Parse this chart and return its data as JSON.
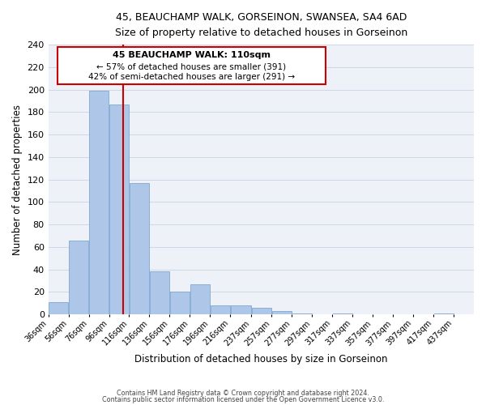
{
  "title_line1": "45, BEAUCHAMP WALK, GORSEINON, SWANSEA, SA4 6AD",
  "title_line2": "Size of property relative to detached houses in Gorseinon",
  "xlabel": "Distribution of detached houses by size in Gorseinon",
  "ylabel": "Number of detached properties",
  "bar_left_edges": [
    36,
    56,
    76,
    96,
    116,
    136,
    156,
    176,
    196,
    216,
    237,
    257,
    277,
    297,
    317,
    337,
    357,
    377,
    397,
    417
  ],
  "bar_widths": [
    20,
    20,
    20,
    20,
    20,
    20,
    20,
    20,
    20,
    21,
    20,
    20,
    20,
    20,
    20,
    20,
    20,
    20,
    20,
    20
  ],
  "bar_heights": [
    11,
    66,
    199,
    187,
    117,
    38,
    20,
    27,
    8,
    8,
    6,
    3,
    1,
    0,
    1,
    0,
    0,
    0,
    0,
    1
  ],
  "bar_color": "#aec6e8",
  "bar_edgecolor": "#7fa8d0",
  "vline_x": 110,
  "vline_color": "#cc0000",
  "annotation_title": "45 BEAUCHAMP WALK: 110sqm",
  "annotation_line1": "← 57% of detached houses are smaller (391)",
  "annotation_line2": "42% of semi-detached houses are larger (291) →",
  "annotation_box_color": "#cc0000",
  "annotation_fill": "#ffffff",
  "ylim": [
    0,
    240
  ],
  "yticks": [
    0,
    20,
    40,
    60,
    80,
    100,
    120,
    140,
    160,
    180,
    200,
    220,
    240
  ],
  "xlim": [
    36,
    457
  ],
  "xtick_labels": [
    "36sqm",
    "56sqm",
    "76sqm",
    "96sqm",
    "116sqm",
    "136sqm",
    "156sqm",
    "176sqm",
    "196sqm",
    "216sqm",
    "237sqm",
    "257sqm",
    "277sqm",
    "297sqm",
    "317sqm",
    "337sqm",
    "357sqm",
    "377sqm",
    "397sqm",
    "417sqm",
    "437sqm"
  ],
  "xtick_positions": [
    36,
    56,
    76,
    96,
    116,
    136,
    156,
    176,
    196,
    216,
    237,
    257,
    277,
    297,
    317,
    337,
    357,
    377,
    397,
    417,
    437
  ],
  "grid_color": "#d0d8e8",
  "background_color": "#eef2f8",
  "footer_line1": "Contains HM Land Registry data © Crown copyright and database right 2024.",
  "footer_line2": "Contains public sector information licensed under the Open Government Licence v3.0."
}
